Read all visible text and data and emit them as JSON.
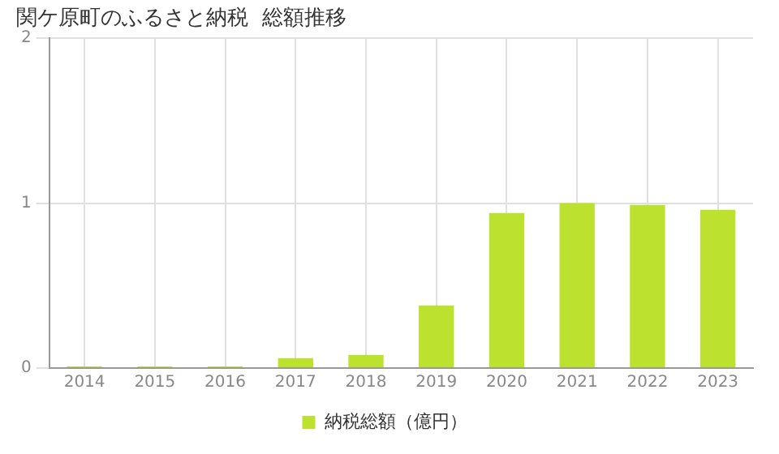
{
  "chart_data": {
    "type": "bar",
    "title": "関ケ原町のふるさと納税  総額推移",
    "categories": [
      "2014",
      "2015",
      "2016",
      "2017",
      "2018",
      "2019",
      "2020",
      "2021",
      "2022",
      "2023"
    ],
    "series": [
      {
        "name": "納税総額（億円）",
        "color": "#bce22f",
        "values": [
          0.01,
          0.01,
          0.01,
          0.06,
          0.08,
          0.38,
          0.94,
          1.0,
          0.99,
          0.96
        ]
      }
    ],
    "ylim": [
      0,
      2
    ],
    "yticks": [
      0,
      1,
      2
    ],
    "grid": true,
    "legend": "bottom"
  }
}
